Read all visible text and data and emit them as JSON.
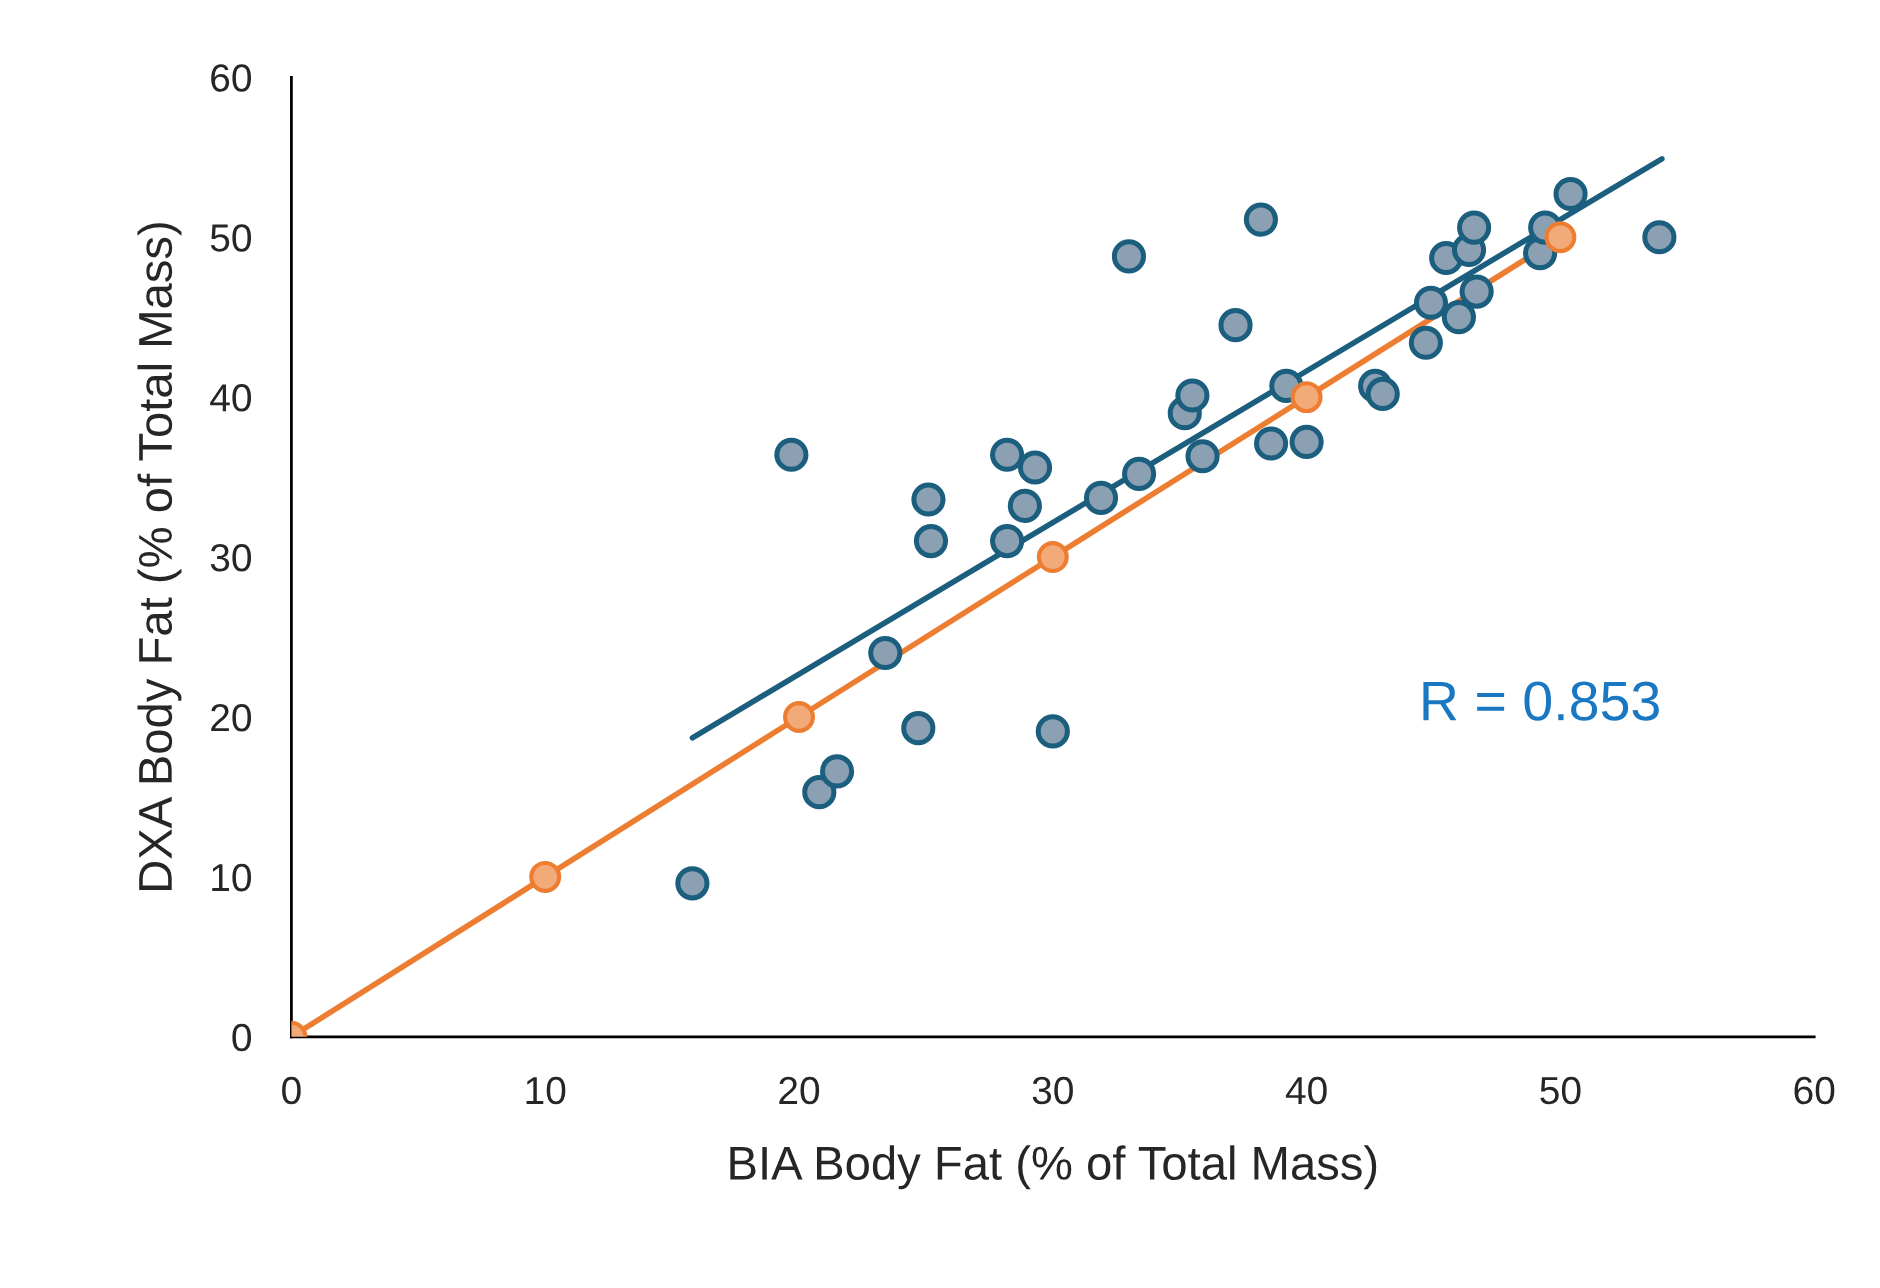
{
  "chart_data": {
    "type": "scatter",
    "xlabel": "BIA Body Fat (% of Total Mass)",
    "ylabel": "DXA Body Fat (% of Total Mass)",
    "xlim": [
      0,
      60
    ],
    "ylim": [
      0,
      60
    ],
    "xticks": [
      0,
      10,
      20,
      30,
      40,
      50,
      60
    ],
    "yticks": [
      0,
      10,
      20,
      30,
      40,
      50,
      60
    ],
    "grid": false,
    "legend": false,
    "annotations": [
      "R = 0.853"
    ],
    "series": [
      {
        "marker": "circle",
        "color": "#8ba1b3",
        "x": [
          15.8,
          19.7,
          20.8,
          21.5,
          23.4,
          24.7,
          25.1,
          25.2,
          28.2,
          28.2,
          28.9,
          29.3,
          30.0,
          31.9,
          33.0,
          33.4,
          35.2,
          35.5,
          35.9,
          37.2,
          38.2,
          38.6,
          39.2,
          40.0,
          42.7,
          43.0,
          44.7,
          44.9,
          45.5,
          46.0,
          46.4,
          46.6,
          46.7,
          49.2,
          49.4,
          50.4,
          53.9
        ],
        "values": [
          9.6,
          36.4,
          15.3,
          16.6,
          24.0,
          19.3,
          33.6,
          31.0,
          31.0,
          36.4,
          33.2,
          35.6,
          19.1,
          33.7,
          48.8,
          35.2,
          39.0,
          40.1,
          36.3,
          44.5,
          51.1,
          37.1,
          40.7,
          37.2,
          40.7,
          40.2,
          43.4,
          45.9,
          48.7,
          45.0,
          49.2,
          50.6,
          46.6,
          49.0,
          50.6,
          52.7,
          50.0
        ]
      },
      {
        "type": "line",
        "marker": "none",
        "color": "#1b5e7e",
        "x": [
          15.8,
          54.0
        ],
        "values": [
          18.7,
          54.9
        ]
      },
      {
        "type": "line",
        "marker": "circle",
        "color": "#ed7d31",
        "x": [
          0,
          10,
          20,
          30,
          40,
          50
        ],
        "values": [
          0,
          10,
          20,
          30,
          40,
          50
        ]
      }
    ]
  }
}
